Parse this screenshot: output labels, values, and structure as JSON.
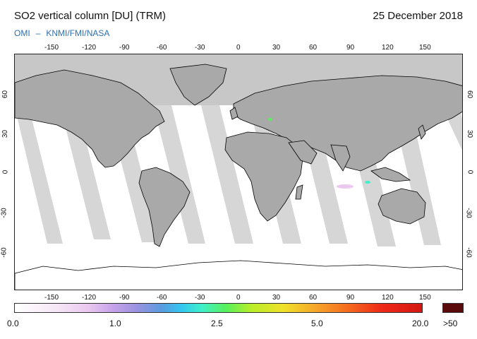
{
  "header": {
    "title": "SO2 vertical column [DU] (TRM)",
    "date": "25 December 2018",
    "credit_left": "OMI",
    "credit_sep": "–",
    "credit_right": "KNMI/FMI/NASA"
  },
  "map": {
    "lon_ticks": [
      "-150",
      "-120",
      "-90",
      "-60",
      "-30",
      "0",
      "30",
      "60",
      "90",
      "120",
      "150"
    ],
    "lat_ticks": [
      "60",
      "30",
      "0",
      "-30",
      "-60"
    ],
    "lat_ticks_right": [
      "60",
      "30",
      "0",
      "-30",
      "-60"
    ],
    "colors": {
      "land": "#a9a9a9",
      "ocean_background": "#ffffff",
      "swath": "#d6d6d6",
      "no_data": "#c7c7c7",
      "coast": "#000000"
    }
  },
  "colorbar": {
    "labels": [
      "0.0",
      "1.0",
      "2.5",
      "5.0",
      "20.0"
    ],
    "max_label": ">50"
  }
}
